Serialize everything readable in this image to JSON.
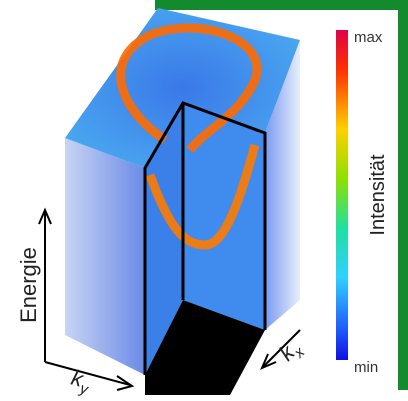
{
  "colorbar": {
    "max_label": "max",
    "min_label": "min",
    "title": "Intensität"
  },
  "axes": {
    "energy": "Energie",
    "ky": {
      "base": "k",
      "sub": "y"
    },
    "kx": {
      "base": "k",
      "sub": "x"
    }
  }
}
